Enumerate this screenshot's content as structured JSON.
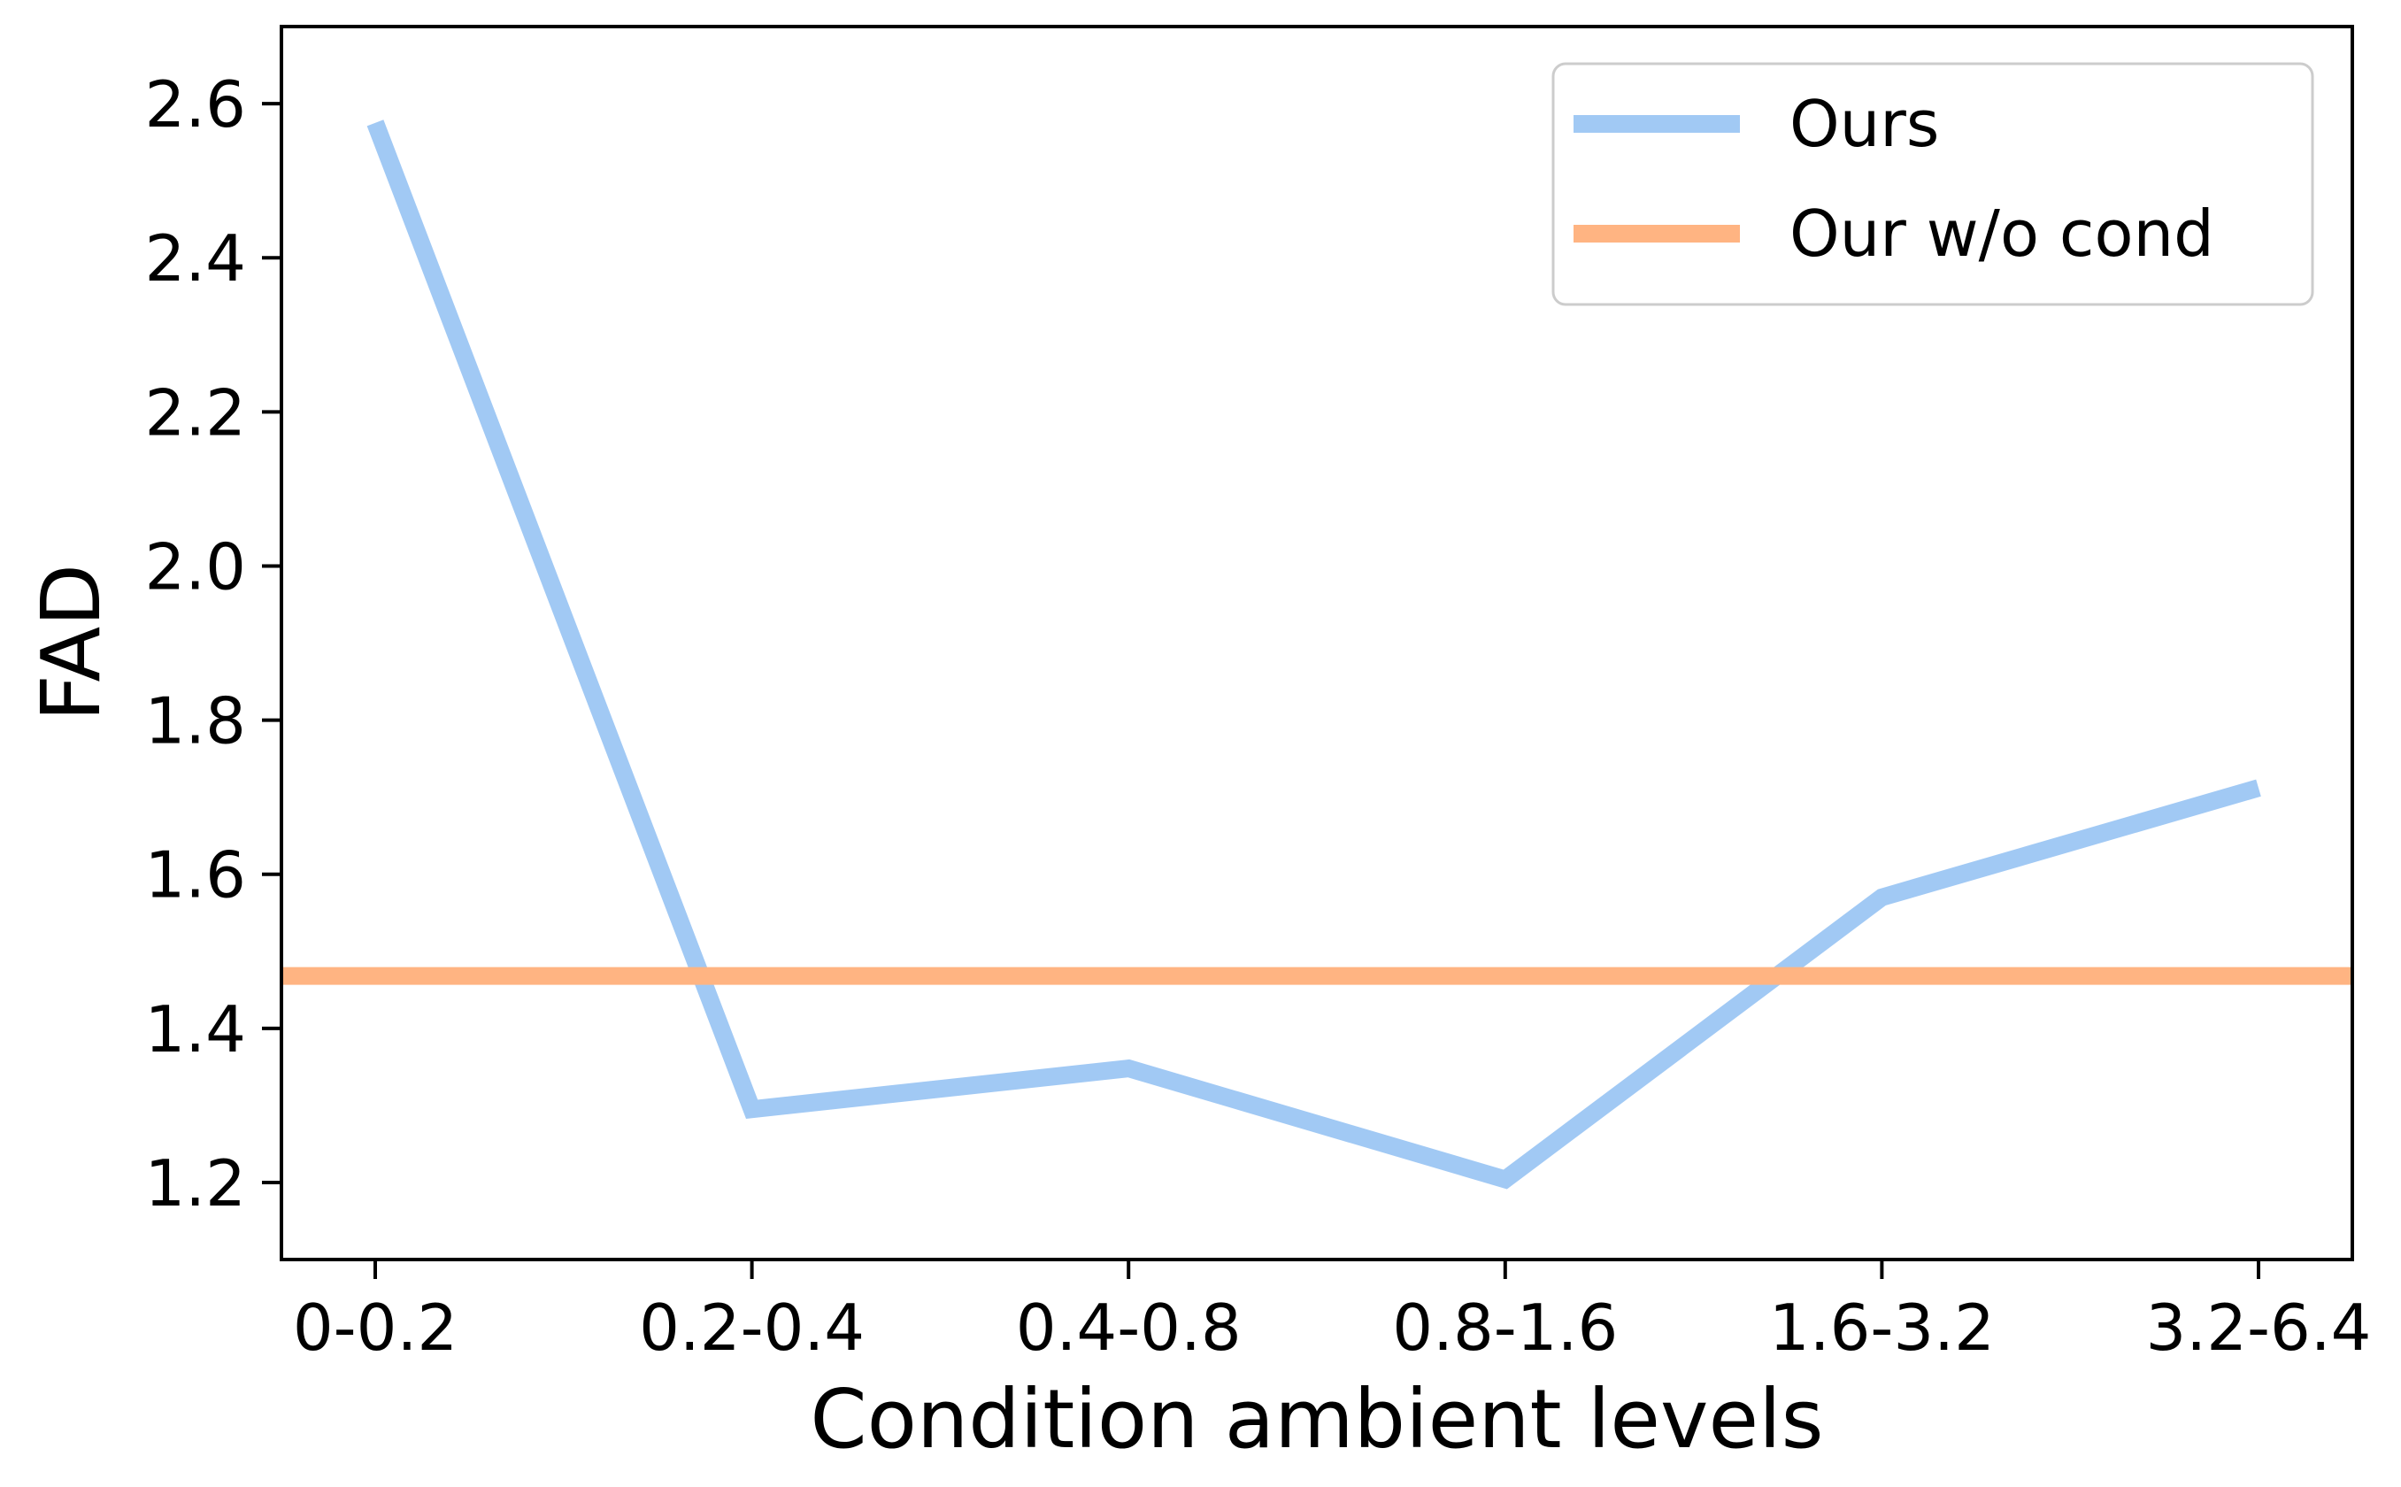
{
  "chart_data": {
    "type": "line",
    "title": "",
    "xlabel": "Condition ambient levels",
    "ylabel": "FAD",
    "categories": [
      "0-0.2",
      "0.2-0.4",
      "0.4-0.8",
      "0.8-1.6",
      "1.6-3.2",
      "3.2-6.4"
    ],
    "ylim": [
      1.1,
      2.7
    ],
    "yticks": [
      "1.2",
      "1.4",
      "1.6",
      "1.8",
      "2.0",
      "2.2",
      "2.4",
      "2.6"
    ],
    "series": [
      {
        "name": "Ours",
        "color": "#a1c9f4",
        "values": [
          2.575,
          1.295,
          1.348,
          1.204,
          1.57,
          1.712
        ]
      },
      {
        "name": "Our w/o cond",
        "color": "#ffb482",
        "constant": 1.468
      }
    ],
    "legend": {
      "placement": "top-right"
    },
    "grid": false
  }
}
